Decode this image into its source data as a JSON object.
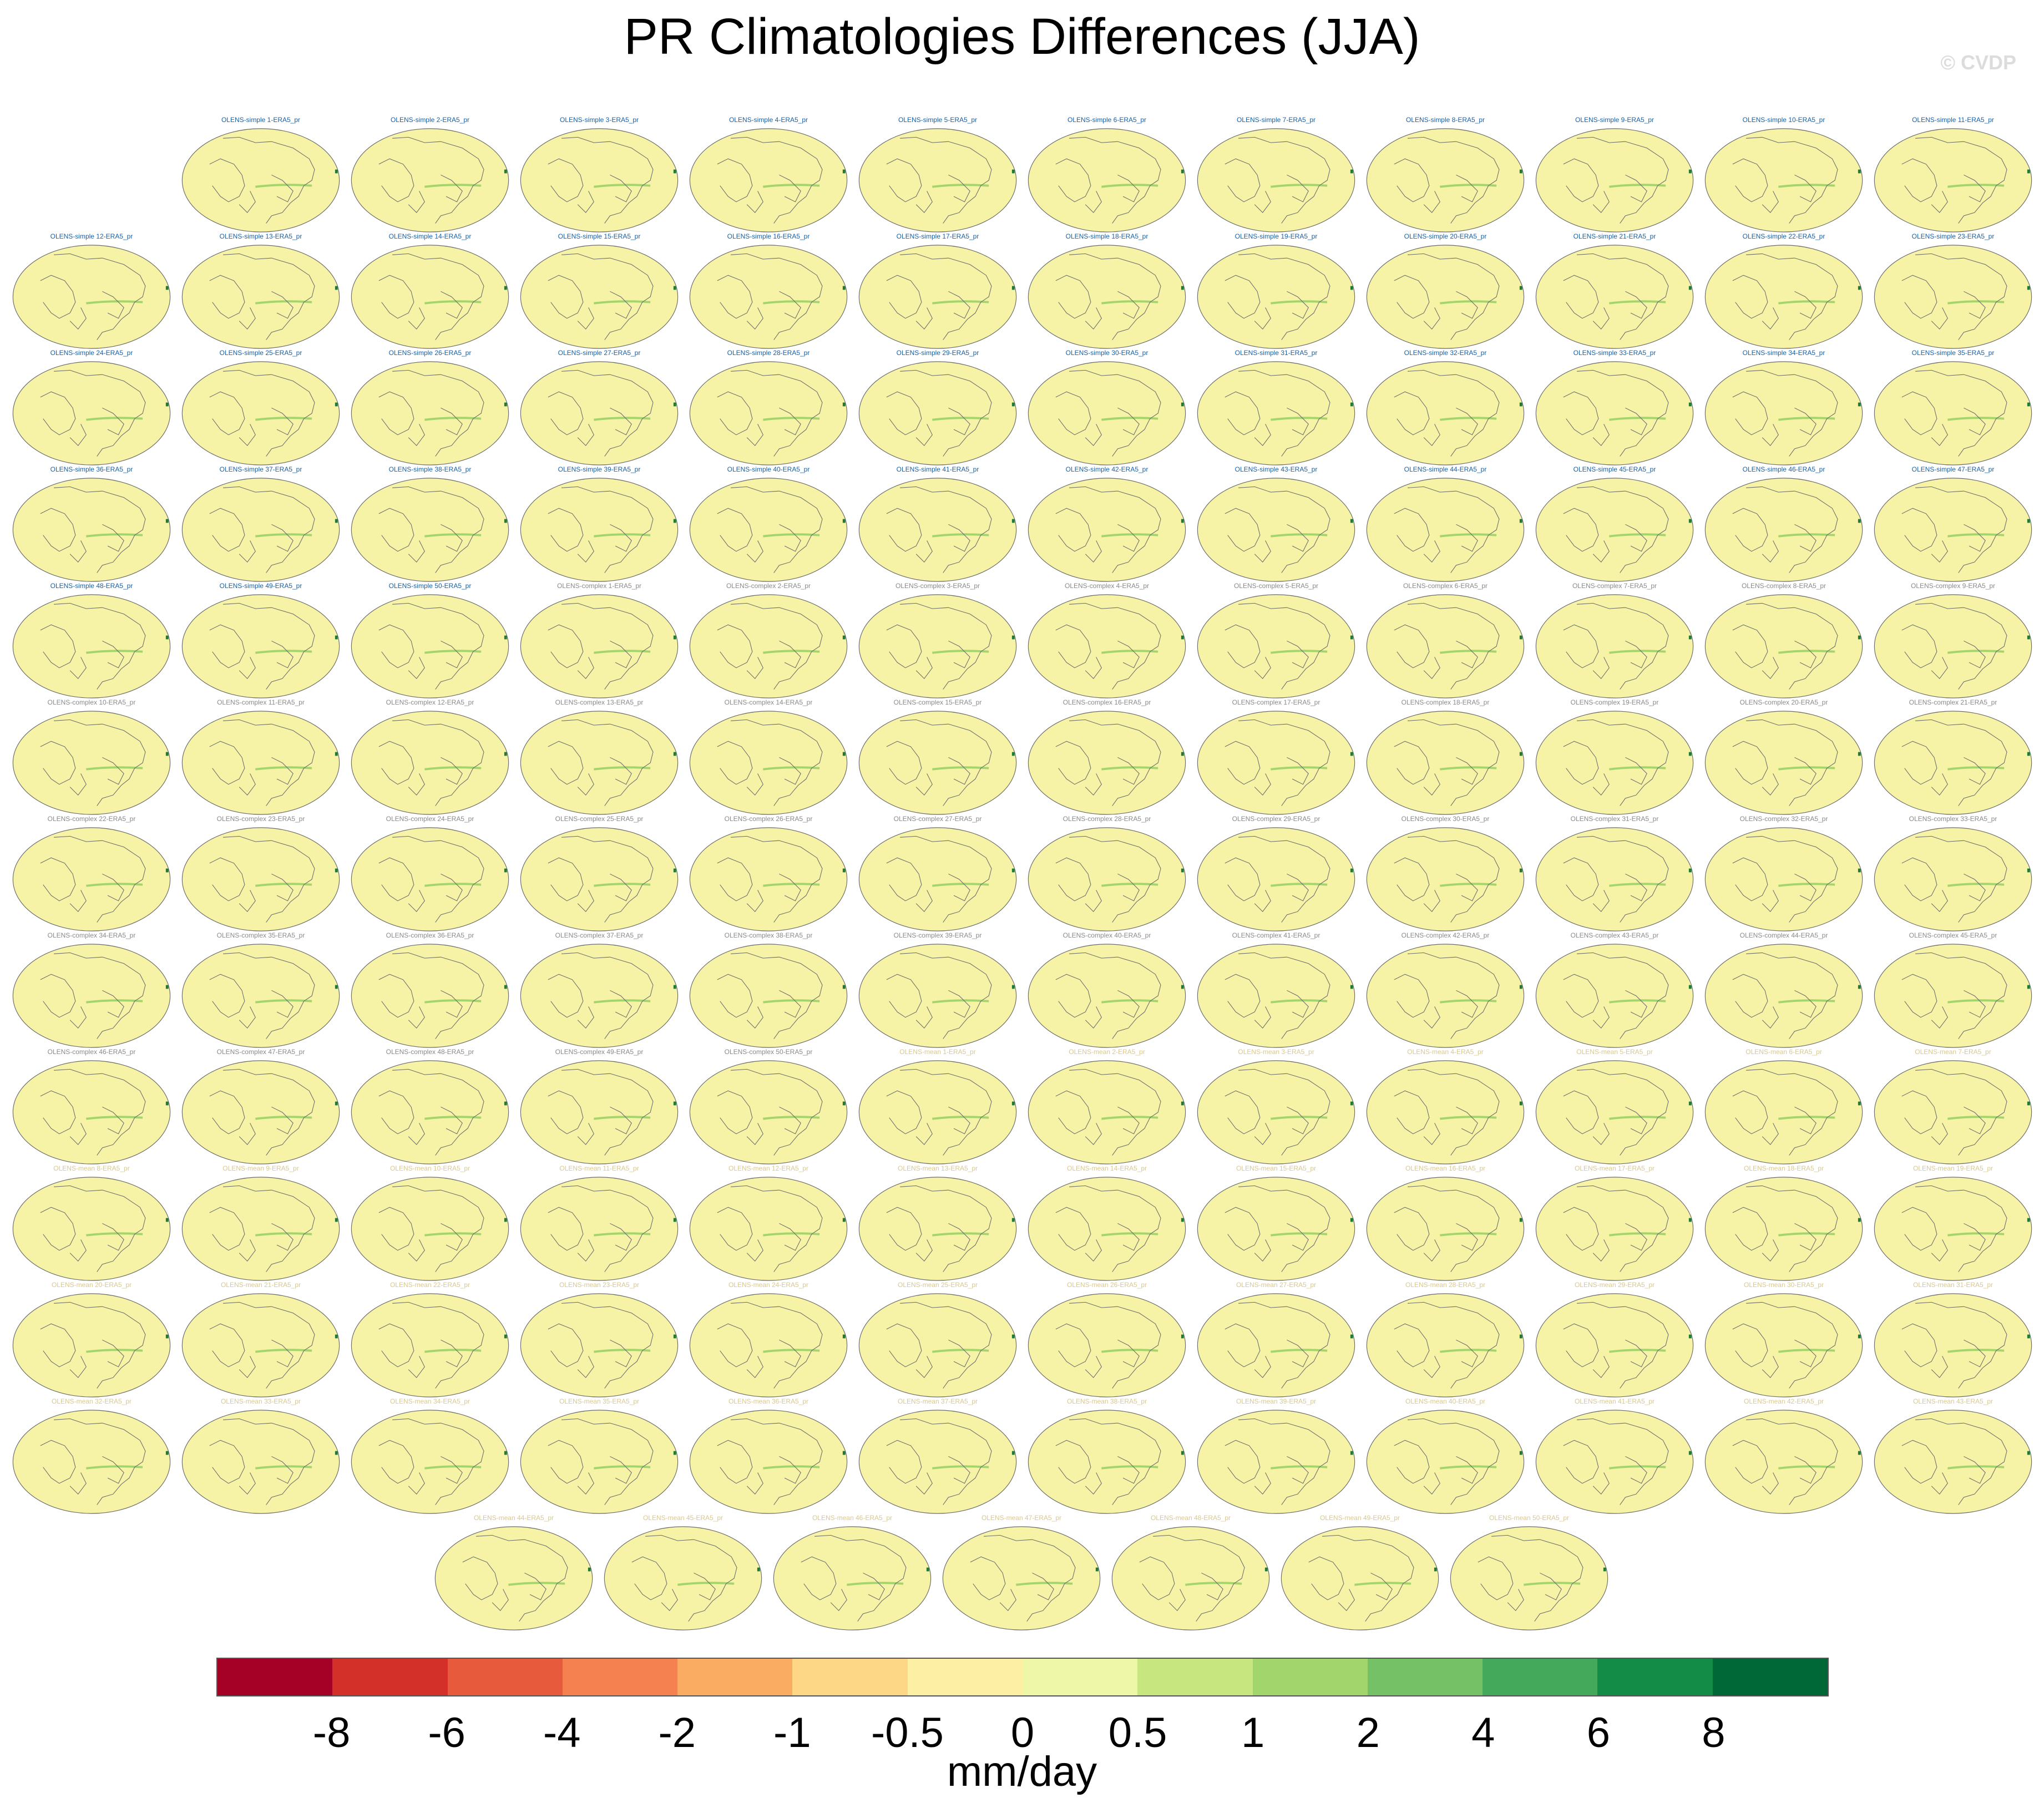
{
  "title": "PR Climatologies Differences (JJA)",
  "watermark": "© CVDP",
  "panels": [
    {
      "title": "OLENS-simple 1-ERA5_pr",
      "group": "simple"
    },
    {
      "title": "OLENS-simple 2-ERA5_pr",
      "group": "simple"
    },
    {
      "title": "OLENS-simple 3-ERA5_pr",
      "group": "simple"
    },
    {
      "title": "OLENS-simple 4-ERA5_pr",
      "group": "simple"
    },
    {
      "title": "OLENS-simple 5-ERA5_pr",
      "group": "simple"
    },
    {
      "title": "OLENS-simple 6-ERA5_pr",
      "group": "simple"
    },
    {
      "title": "OLENS-simple 7-ERA5_pr",
      "group": "simple"
    },
    {
      "title": "OLENS-simple 8-ERA5_pr",
      "group": "simple"
    },
    {
      "title": "OLENS-simple 9-ERA5_pr",
      "group": "simple"
    },
    {
      "title": "OLENS-simple 10-ERA5_pr",
      "group": "simple"
    },
    {
      "title": "OLENS-simple 11-ERA5_pr",
      "group": "simple"
    },
    {
      "title": "OLENS-simple 12-ERA5_pr",
      "group": "simple"
    },
    {
      "title": "OLENS-simple 13-ERA5_pr",
      "group": "simple"
    },
    {
      "title": "OLENS-simple 14-ERA5_pr",
      "group": "simple"
    },
    {
      "title": "OLENS-simple 15-ERA5_pr",
      "group": "simple"
    },
    {
      "title": "OLENS-simple 16-ERA5_pr",
      "group": "simple"
    },
    {
      "title": "OLENS-simple 17-ERA5_pr",
      "group": "simple"
    },
    {
      "title": "OLENS-simple 18-ERA5_pr",
      "group": "simple"
    },
    {
      "title": "OLENS-simple 19-ERA5_pr",
      "group": "simple"
    },
    {
      "title": "OLENS-simple 20-ERA5_pr",
      "group": "simple"
    },
    {
      "title": "OLENS-simple 21-ERA5_pr",
      "group": "simple"
    },
    {
      "title": "OLENS-simple 22-ERA5_pr",
      "group": "simple"
    },
    {
      "title": "OLENS-simple 23-ERA5_pr",
      "group": "simple"
    },
    {
      "title": "OLENS-simple 24-ERA5_pr",
      "group": "simple"
    },
    {
      "title": "OLENS-simple 25-ERA5_pr",
      "group": "simple"
    },
    {
      "title": "OLENS-simple 26-ERA5_pr",
      "group": "simple"
    },
    {
      "title": "OLENS-simple 27-ERA5_pr",
      "group": "simple"
    },
    {
      "title": "OLENS-simple 28-ERA5_pr",
      "group": "simple"
    },
    {
      "title": "OLENS-simple 29-ERA5_pr",
      "group": "simple"
    },
    {
      "title": "OLENS-simple 30-ERA5_pr",
      "group": "simple"
    },
    {
      "title": "OLENS-simple 31-ERA5_pr",
      "group": "simple"
    },
    {
      "title": "OLENS-simple 32-ERA5_pr",
      "group": "simple"
    },
    {
      "title": "OLENS-simple 33-ERA5_pr",
      "group": "simple"
    },
    {
      "title": "OLENS-simple 34-ERA5_pr",
      "group": "simple"
    },
    {
      "title": "OLENS-simple 35-ERA5_pr",
      "group": "simple"
    },
    {
      "title": "OLENS-simple 36-ERA5_pr",
      "group": "simple"
    },
    {
      "title": "OLENS-simple 37-ERA5_pr",
      "group": "simple"
    },
    {
      "title": "OLENS-simple 38-ERA5_pr",
      "group": "simple"
    },
    {
      "title": "OLENS-simple 39-ERA5_pr",
      "group": "simple"
    },
    {
      "title": "OLENS-simple 40-ERA5_pr",
      "group": "simple"
    },
    {
      "title": "OLENS-simple 41-ERA5_pr",
      "group": "simple"
    },
    {
      "title": "OLENS-simple 42-ERA5_pr",
      "group": "simple"
    },
    {
      "title": "OLENS-simple 43-ERA5_pr",
      "group": "simple"
    },
    {
      "title": "OLENS-simple 44-ERA5_pr",
      "group": "simple"
    },
    {
      "title": "OLENS-simple 45-ERA5_pr",
      "group": "simple"
    },
    {
      "title": "OLENS-simple 46-ERA5_pr",
      "group": "simple"
    },
    {
      "title": "OLENS-simple 47-ERA5_pr",
      "group": "simple"
    },
    {
      "title": "OLENS-simple 48-ERA5_pr",
      "group": "simple"
    },
    {
      "title": "OLENS-simple 49-ERA5_pr",
      "group": "simple"
    },
    {
      "title": "OLENS-simple 50-ERA5_pr",
      "group": "simple"
    },
    {
      "title": "OLENS-complex 1-ERA5_pr",
      "group": "complex"
    },
    {
      "title": "OLENS-complex 2-ERA5_pr",
      "group": "complex"
    },
    {
      "title": "OLENS-complex 3-ERA5_pr",
      "group": "complex"
    },
    {
      "title": "OLENS-complex 4-ERA5_pr",
      "group": "complex"
    },
    {
      "title": "OLENS-complex 5-ERA5_pr",
      "group": "complex"
    },
    {
      "title": "OLENS-complex 6-ERA5_pr",
      "group": "complex"
    },
    {
      "title": "OLENS-complex 7-ERA5_pr",
      "group": "complex"
    },
    {
      "title": "OLENS-complex 8-ERA5_pr",
      "group": "complex"
    },
    {
      "title": "OLENS-complex 9-ERA5_pr",
      "group": "complex"
    },
    {
      "title": "OLENS-complex 10-ERA5_pr",
      "group": "complex"
    },
    {
      "title": "OLENS-complex 11-ERA5_pr",
      "group": "complex"
    },
    {
      "title": "OLENS-complex 12-ERA5_pr",
      "group": "complex"
    },
    {
      "title": "OLENS-complex 13-ERA5_pr",
      "group": "complex"
    },
    {
      "title": "OLENS-complex 14-ERA5_pr",
      "group": "complex"
    },
    {
      "title": "OLENS-complex 15-ERA5_pr",
      "group": "complex"
    },
    {
      "title": "OLENS-complex 16-ERA5_pr",
      "group": "complex"
    },
    {
      "title": "OLENS-complex 17-ERA5_pr",
      "group": "complex"
    },
    {
      "title": "OLENS-complex 18-ERA5_pr",
      "group": "complex"
    },
    {
      "title": "OLENS-complex 19-ERA5_pr",
      "group": "complex"
    },
    {
      "title": "OLENS-complex 20-ERA5_pr",
      "group": "complex"
    },
    {
      "title": "OLENS-complex 21-ERA5_pr",
      "group": "complex"
    },
    {
      "title": "OLENS-complex 22-ERA5_pr",
      "group": "complex"
    },
    {
      "title": "OLENS-complex 23-ERA5_pr",
      "group": "complex"
    },
    {
      "title": "OLENS-complex 24-ERA5_pr",
      "group": "complex"
    },
    {
      "title": "OLENS-complex 25-ERA5_pr",
      "group": "complex"
    },
    {
      "title": "OLENS-complex 26-ERA5_pr",
      "group": "complex"
    },
    {
      "title": "OLENS-complex 27-ERA5_pr",
      "group": "complex"
    },
    {
      "title": "OLENS-complex 28-ERA5_pr",
      "group": "complex"
    },
    {
      "title": "OLENS-complex 29-ERA5_pr",
      "group": "complex"
    },
    {
      "title": "OLENS-complex 30-ERA5_pr",
      "group": "complex"
    },
    {
      "title": "OLENS-complex 31-ERA5_pr",
      "group": "complex"
    },
    {
      "title": "OLENS-complex 32-ERA5_pr",
      "group": "complex"
    },
    {
      "title": "OLENS-complex 33-ERA5_pr",
      "group": "complex"
    },
    {
      "title": "OLENS-complex 34-ERA5_pr",
      "group": "complex"
    },
    {
      "title": "OLENS-complex 35-ERA5_pr",
      "group": "complex"
    },
    {
      "title": "OLENS-complex 36-ERA5_pr",
      "group": "complex"
    },
    {
      "title": "OLENS-complex 37-ERA5_pr",
      "group": "complex"
    },
    {
      "title": "OLENS-complex 38-ERA5_pr",
      "group": "complex"
    },
    {
      "title": "OLENS-complex 39-ERA5_pr",
      "group": "complex"
    },
    {
      "title": "OLENS-complex 40-ERA5_pr",
      "group": "complex"
    },
    {
      "title": "OLENS-complex 41-ERA5_pr",
      "group": "complex"
    },
    {
      "title": "OLENS-complex 42-ERA5_pr",
      "group": "complex"
    },
    {
      "title": "OLENS-complex 43-ERA5_pr",
      "group": "complex"
    },
    {
      "title": "OLENS-complex 44-ERA5_pr",
      "group": "complex"
    },
    {
      "title": "OLENS-complex 45-ERA5_pr",
      "group": "complex"
    },
    {
      "title": "OLENS-complex 46-ERA5_pr",
      "group": "complex"
    },
    {
      "title": "OLENS-complex 47-ERA5_pr",
      "group": "complex"
    },
    {
      "title": "OLENS-complex 48-ERA5_pr",
      "group": "complex"
    },
    {
      "title": "OLENS-complex 49-ERA5_pr",
      "group": "complex"
    },
    {
      "title": "OLENS-complex 50-ERA5_pr",
      "group": "complex"
    },
    {
      "title": "OLENS-mean 1-ERA5_pr",
      "group": "mean"
    },
    {
      "title": "OLENS-mean 2-ERA5_pr",
      "group": "mean"
    },
    {
      "title": "OLENS-mean 3-ERA5_pr",
      "group": "mean"
    },
    {
      "title": "OLENS-mean 4-ERA5_pr",
      "group": "mean"
    },
    {
      "title": "OLENS-mean 5-ERA5_pr",
      "group": "mean"
    },
    {
      "title": "OLENS-mean 6-ERA5_pr",
      "group": "mean"
    },
    {
      "title": "OLENS-mean 7-ERA5_pr",
      "group": "mean"
    },
    {
      "title": "OLENS-mean 8-ERA5_pr",
      "group": "mean"
    },
    {
      "title": "OLENS-mean 9-ERA5_pr",
      "group": "mean"
    },
    {
      "title": "OLENS-mean 10-ERA5_pr",
      "group": "mean"
    },
    {
      "title": "OLENS-mean 11-ERA5_pr",
      "group": "mean"
    },
    {
      "title": "OLENS-mean 12-ERA5_pr",
      "group": "mean"
    },
    {
      "title": "OLENS-mean 13-ERA5_pr",
      "group": "mean"
    },
    {
      "title": "OLENS-mean 14-ERA5_pr",
      "group": "mean"
    },
    {
      "title": "OLENS-mean 15-ERA5_pr",
      "group": "mean"
    },
    {
      "title": "OLENS-mean 16-ERA5_pr",
      "group": "mean"
    },
    {
      "title": "OLENS-mean 17-ERA5_pr",
      "group": "mean"
    },
    {
      "title": "OLENS-mean 18-ERA5_pr",
      "group": "mean"
    },
    {
      "title": "OLENS-mean 19-ERA5_pr",
      "group": "mean"
    },
    {
      "title": "OLENS-mean 20-ERA5_pr",
      "group": "mean"
    },
    {
      "title": "OLENS-mean 21-ERA5_pr",
      "group": "mean"
    },
    {
      "title": "OLENS-mean 22-ERA5_pr",
      "group": "mean"
    },
    {
      "title": "OLENS-mean 23-ERA5_pr",
      "group": "mean"
    },
    {
      "title": "OLENS-mean 24-ERA5_pr",
      "group": "mean"
    },
    {
      "title": "OLENS-mean 25-ERA5_pr",
      "group": "mean"
    },
    {
      "title": "OLENS-mean 26-ERA5_pr",
      "group": "mean"
    },
    {
      "title": "OLENS-mean 27-ERA5_pr",
      "group": "mean"
    },
    {
      "title": "OLENS-mean 28-ERA5_pr",
      "group": "mean"
    },
    {
      "title": "OLENS-mean 29-ERA5_pr",
      "group": "mean"
    },
    {
      "title": "OLENS-mean 30-ERA5_pr",
      "group": "mean"
    },
    {
      "title": "OLENS-mean 31-ERA5_pr",
      "group": "mean"
    },
    {
      "title": "OLENS-mean 32-ERA5_pr",
      "group": "mean"
    },
    {
      "title": "OLENS-mean 33-ERA5_pr",
      "group": "mean"
    },
    {
      "title": "OLENS-mean 34-ERA5_pr",
      "group": "mean"
    },
    {
      "title": "OLENS-mean 35-ERA5_pr",
      "group": "mean"
    },
    {
      "title": "OLENS-mean 36-ERA5_pr",
      "group": "mean"
    },
    {
      "title": "OLENS-mean 37-ERA5_pr",
      "group": "mean"
    },
    {
      "title": "OLENS-mean 38-ERA5_pr",
      "group": "mean"
    },
    {
      "title": "OLENS-mean 39-ERA5_pr",
      "group": "mean"
    },
    {
      "title": "OLENS-mean 40-ERA5_pr",
      "group": "mean"
    },
    {
      "title": "OLENS-mean 41-ERA5_pr",
      "group": "mean"
    },
    {
      "title": "OLENS-mean 42-ERA5_pr",
      "group": "mean"
    },
    {
      "title": "OLENS-mean 43-ERA5_pr",
      "group": "mean"
    },
    {
      "title": "OLENS-mean 44-ERA5_pr",
      "group": "mean"
    },
    {
      "title": "OLENS-mean 45-ERA5_pr",
      "group": "mean"
    },
    {
      "title": "OLENS-mean 46-ERA5_pr",
      "group": "mean"
    },
    {
      "title": "OLENS-mean 47-ERA5_pr",
      "group": "mean"
    },
    {
      "title": "OLENS-mean 48-ERA5_pr",
      "group": "mean"
    },
    {
      "title": "OLENS-mean 49-ERA5_pr",
      "group": "mean"
    },
    {
      "title": "OLENS-mean 50-ERA5_pr",
      "group": "mean"
    }
  ],
  "colorbar": {
    "colors": [
      "#a50026",
      "#d3302a",
      "#e85a3c",
      "#f4814f",
      "#fbac63",
      "#fdd785",
      "#fdf0a5",
      "#eef7a7",
      "#c8e680",
      "#a2d56b",
      "#74c265",
      "#44a95a",
      "#138c48",
      "#006837"
    ],
    "tick_labels": [
      "-8",
      "-6",
      "-4",
      "-2",
      "-1",
      "-0.5",
      "0",
      "0.5",
      "1",
      "2",
      "4",
      "6",
      "8"
    ],
    "units": "mm/day"
  },
  "map_style": {
    "ocean_fill": "#f6f3a6",
    "coastline": "#6b6b6b",
    "itcz": "#9bd266",
    "hotspot": "#1f7a3a"
  }
}
